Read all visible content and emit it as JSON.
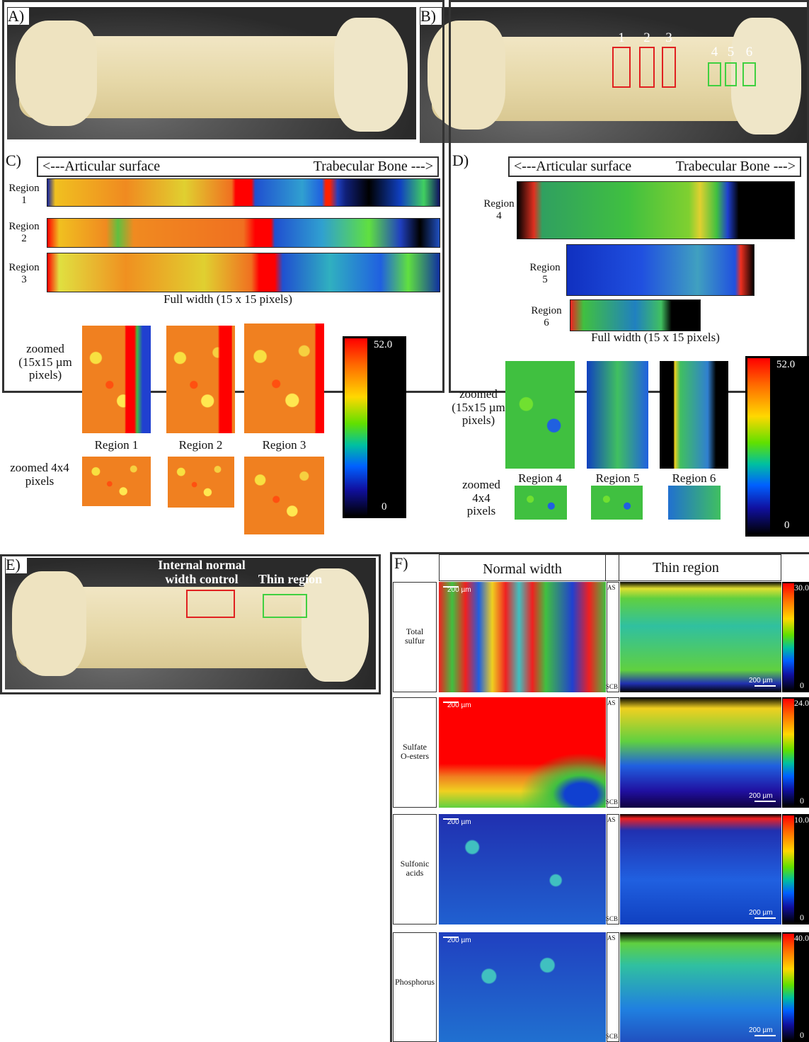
{
  "panel_a": {
    "label": "A)"
  },
  "panel_b": {
    "label": "B)",
    "markers": [
      "1",
      "2",
      "3",
      "4",
      "5",
      "6"
    ]
  },
  "panel_c": {
    "label": "C)",
    "header_left": "<---Articular surface",
    "header_right": "Trabecular Bone --->",
    "rows": [
      "Region\n1",
      "Region\n2",
      "Region\n3"
    ],
    "full_width_caption": "Full width (15 x 15 pixels)",
    "zoomed_label": "zoomed\n(15x15 µm\npixels)",
    "zoom_captions": [
      "Region 1",
      "Region 2",
      "Region 3"
    ],
    "zoomed_4x4_label": "zoomed 4x4\npixels",
    "colorbar_max": "52.0",
    "colorbar_min": "0"
  },
  "panel_d": {
    "label": "D)",
    "header_left": "<---Articular surface",
    "header_right": "Trabecular Bone --->",
    "rows": [
      "Region\n4",
      "Region\n5",
      "Region\n6"
    ],
    "full_width_caption": "Full width (15 x 15 pixels)",
    "zoomed_label": "zoomed\n(15x15 µm\npixels)",
    "zoom_captions": [
      "Region 4",
      "Region 5",
      "Region 6"
    ],
    "zoomed_4x4_label": "zoomed\n4x4\npixels",
    "colorbar_max": "52.0",
    "colorbar_min": "0"
  },
  "panel_e": {
    "label": "E)",
    "control_label": "Internal normal\nwidth control",
    "thin_label": "Thin region"
  },
  "panel_f": {
    "label": "F)",
    "column_headers": [
      "Normal width",
      "Thin region"
    ],
    "rows": [
      {
        "name": "Total\nsulfur",
        "max": "30.0",
        "min": "0"
      },
      {
        "name": "Sulfate\nO-esters",
        "max": "24.0",
        "min": "0"
      },
      {
        "name": "Sulfonic\nacids",
        "max": "10.0",
        "min": "0"
      },
      {
        "name": "Phosphorus",
        "max": "40.0",
        "min": "0"
      }
    ],
    "scale_bar": "200 µm",
    "top_marker": "AS",
    "bottom_marker": "SCB"
  }
}
